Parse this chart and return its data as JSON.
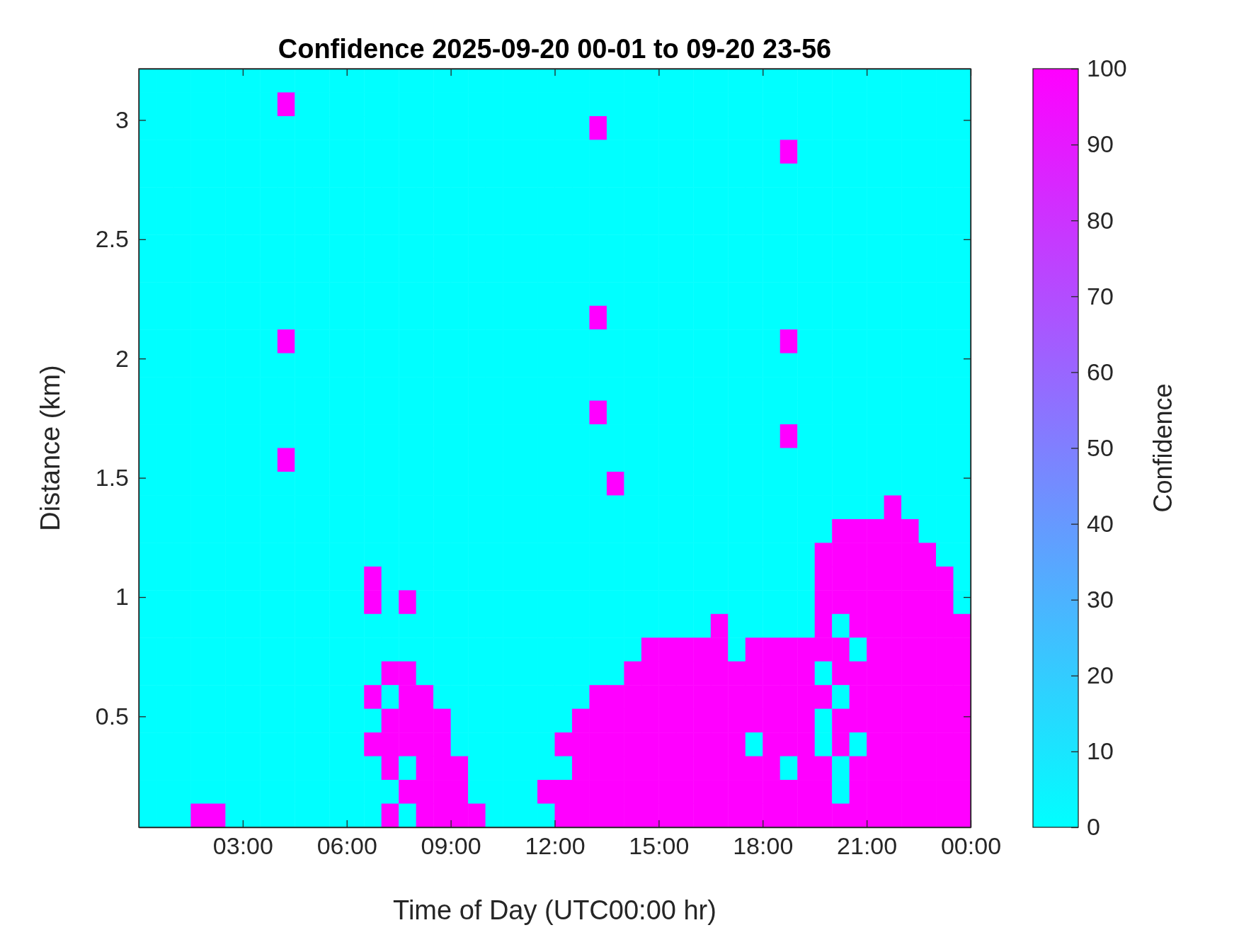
{
  "chart_data": {
    "type": "heatmap",
    "title": "Confidence 2025-09-20 00-01 to 09-20 23-56",
    "xlabel": "Time of Day (UTC00:00 hr)",
    "ylabel": "Distance (km)",
    "clabel": "Confidence",
    "xlim": [
      0,
      24
    ],
    "ylim": [
      0.035,
      3.215
    ],
    "xticks": [
      {
        "value": 3,
        "label": "03:00"
      },
      {
        "value": 6,
        "label": "06:00"
      },
      {
        "value": 9,
        "label": "09:00"
      },
      {
        "value": 12,
        "label": "12:00"
      },
      {
        "value": 15,
        "label": "15:00"
      },
      {
        "value": 18,
        "label": "18:00"
      },
      {
        "value": 21,
        "label": "21:00"
      },
      {
        "value": 24,
        "label": "00:00"
      }
    ],
    "yticks": [
      0.5,
      1,
      1.5,
      2,
      2.5,
      3
    ],
    "clim": [
      0,
      100
    ],
    "cticks": [
      0,
      10,
      20,
      30,
      40,
      50,
      60,
      70,
      80,
      90,
      100
    ],
    "cells": [
      [
        0,
        0,
        0,
        0,
        0,
        0,
        0,
        0,
        0,
        0,
        0,
        0,
        0,
        0,
        0,
        0,
        0,
        0,
        0,
        0,
        0,
        0,
        0,
        0,
        0,
        0,
        0,
        0,
        0,
        0,
        0,
        0,
        0,
        0,
        0,
        0,
        0,
        0,
        0,
        0,
        0,
        0,
        0,
        0,
        0,
        0,
        0,
        0
      ],
      [
        0,
        0,
        0,
        0,
        0,
        0,
        0,
        0,
        100,
        0,
        0,
        0,
        0,
        0,
        0,
        0,
        0,
        0,
        0,
        0,
        0,
        0,
        0,
        0,
        0,
        0,
        0,
        0,
        0,
        0,
        0,
        0,
        0,
        0,
        0,
        0,
        0,
        0,
        0,
        0,
        0,
        0,
        0,
        0,
        0,
        0,
        0,
        0
      ],
      [
        0,
        0,
        0,
        0,
        0,
        0,
        0,
        0,
        0,
        0,
        0,
        0,
        0,
        0,
        0,
        0,
        0,
        0,
        0,
        0,
        0,
        0,
        0,
        0,
        0,
        0,
        100,
        0,
        0,
        0,
        0,
        0,
        0,
        0,
        0,
        0,
        0,
        0,
        0,
        0,
        0,
        0,
        0,
        0,
        0,
        0,
        0,
        0
      ],
      [
        0,
        0,
        0,
        0,
        0,
        0,
        0,
        0,
        0,
        0,
        0,
        0,
        0,
        0,
        0,
        0,
        0,
        0,
        0,
        0,
        0,
        0,
        0,
        0,
        0,
        0,
        0,
        0,
        0,
        0,
        0,
        0,
        0,
        0,
        0,
        0,
        0,
        100,
        0,
        0,
        0,
        0,
        0,
        0,
        0,
        0,
        0,
        0
      ],
      [
        0,
        0,
        0,
        0,
        0,
        0,
        0,
        0,
        0,
        0,
        0,
        0,
        0,
        0,
        0,
        0,
        0,
        0,
        0,
        0,
        0,
        0,
        0,
        0,
        0,
        0,
        0,
        0,
        0,
        0,
        0,
        0,
        0,
        0,
        0,
        0,
        0,
        0,
        0,
        0,
        0,
        0,
        0,
        0,
        0,
        0,
        0,
        0
      ],
      [
        0,
        0,
        0,
        0,
        0,
        0,
        0,
        0,
        0,
        0,
        0,
        0,
        0,
        0,
        0,
        0,
        0,
        0,
        0,
        0,
        0,
        0,
        0,
        0,
        0,
        0,
        0,
        0,
        0,
        0,
        0,
        0,
        0,
        0,
        0,
        0,
        0,
        0,
        0,
        0,
        0,
        0,
        0,
        0,
        0,
        0,
        0,
        0
      ],
      [
        0,
        0,
        0,
        0,
        0,
        0,
        0,
        0,
        0,
        0,
        0,
        0,
        0,
        0,
        0,
        0,
        0,
        0,
        0,
        0,
        0,
        0,
        0,
        0,
        0,
        0,
        0,
        0,
        0,
        0,
        0,
        0,
        0,
        0,
        0,
        0,
        0,
        0,
        0,
        0,
        0,
        0,
        0,
        0,
        0,
        0,
        0,
        0
      ],
      [
        0,
        0,
        0,
        0,
        0,
        0,
        0,
        0,
        0,
        0,
        0,
        0,
        0,
        0,
        0,
        0,
        0,
        0,
        0,
        0,
        0,
        0,
        0,
        0,
        0,
        0,
        0,
        0,
        0,
        0,
        0,
        0,
        0,
        0,
        0,
        0,
        0,
        0,
        0,
        0,
        0,
        0,
        0,
        0,
        0,
        0,
        0,
        0
      ],
      [
        0,
        0,
        0,
        0,
        0,
        0,
        0,
        0,
        0,
        0,
        0,
        0,
        0,
        0,
        0,
        0,
        0,
        0,
        0,
        0,
        0,
        0,
        0,
        0,
        0,
        0,
        0,
        0,
        0,
        0,
        0,
        0,
        0,
        0,
        0,
        0,
        0,
        0,
        0,
        0,
        0,
        0,
        0,
        0,
        0,
        0,
        0,
        0
      ],
      [
        0,
        0,
        0,
        0,
        0,
        0,
        0,
        0,
        0,
        0,
        0,
        0,
        0,
        0,
        0,
        0,
        0,
        0,
        0,
        0,
        0,
        0,
        0,
        0,
        0,
        0,
        0,
        0,
        0,
        0,
        0,
        0,
        0,
        0,
        0,
        0,
        0,
        0,
        0,
        0,
        0,
        0,
        0,
        0,
        0,
        0,
        0,
        0
      ],
      [
        0,
        0,
        0,
        0,
        0,
        0,
        0,
        0,
        0,
        0,
        0,
        0,
        0,
        0,
        0,
        0,
        0,
        0,
        0,
        0,
        0,
        0,
        0,
        0,
        0,
        0,
        100,
        0,
        0,
        0,
        0,
        0,
        0,
        0,
        0,
        0,
        0,
        0,
        0,
        0,
        0,
        0,
        0,
        0,
        0,
        0,
        0,
        0
      ],
      [
        0,
        0,
        0,
        0,
        0,
        0,
        0,
        0,
        100,
        0,
        0,
        0,
        0,
        0,
        0,
        0,
        0,
        0,
        0,
        0,
        0,
        0,
        0,
        0,
        0,
        0,
        0,
        0,
        0,
        0,
        0,
        0,
        0,
        0,
        0,
        0,
        0,
        100,
        0,
        0,
        0,
        0,
        0,
        0,
        0,
        0,
        0,
        0
      ],
      [
        0,
        0,
        0,
        0,
        0,
        0,
        0,
        0,
        0,
        0,
        0,
        0,
        0,
        0,
        0,
        0,
        0,
        0,
        0,
        0,
        0,
        0,
        0,
        0,
        0,
        0,
        0,
        0,
        0,
        0,
        0,
        0,
        0,
        0,
        0,
        0,
        0,
        0,
        0,
        0,
        0,
        0,
        0,
        0,
        0,
        0,
        0,
        0
      ],
      [
        0,
        0,
        0,
        0,
        0,
        0,
        0,
        0,
        0,
        0,
        0,
        0,
        0,
        0,
        0,
        0,
        0,
        0,
        0,
        0,
        0,
        0,
        0,
        0,
        0,
        0,
        0,
        0,
        0,
        0,
        0,
        0,
        0,
        0,
        0,
        0,
        0,
        0,
        0,
        0,
        0,
        0,
        0,
        0,
        0,
        0,
        0,
        0
      ],
      [
        0,
        0,
        0,
        0,
        0,
        0,
        0,
        0,
        0,
        0,
        0,
        0,
        0,
        0,
        0,
        0,
        0,
        0,
        0,
        0,
        0,
        0,
        0,
        0,
        0,
        0,
        100,
        0,
        0,
        0,
        0,
        0,
        0,
        0,
        0,
        0,
        0,
        0,
        0,
        0,
        0,
        0,
        0,
        0,
        0,
        0,
        0,
        0
      ],
      [
        0,
        0,
        0,
        0,
        0,
        0,
        0,
        0,
        0,
        0,
        0,
        0,
        0,
        0,
        0,
        0,
        0,
        0,
        0,
        0,
        0,
        0,
        0,
        0,
        0,
        0,
        0,
        0,
        0,
        0,
        0,
        0,
        0,
        0,
        0,
        0,
        0,
        100,
        0,
        0,
        0,
        0,
        0,
        0,
        0,
        0,
        0,
        0
      ],
      [
        0,
        0,
        0,
        0,
        0,
        0,
        0,
        0,
        100,
        0,
        0,
        0,
        0,
        0,
        0,
        0,
        0,
        0,
        0,
        0,
        0,
        0,
        0,
        0,
        0,
        0,
        0,
        0,
        0,
        0,
        0,
        0,
        0,
        0,
        0,
        0,
        0,
        0,
        0,
        0,
        0,
        0,
        0,
        0,
        0,
        0,
        0,
        0
      ],
      [
        0,
        0,
        0,
        0,
        0,
        0,
        0,
        0,
        0,
        0,
        0,
        0,
        0,
        0,
        0,
        0,
        0,
        0,
        0,
        0,
        0,
        0,
        0,
        0,
        0,
        0,
        0,
        100,
        0,
        0,
        0,
        0,
        0,
        0,
        0,
        0,
        0,
        0,
        0,
        0,
        0,
        0,
        0,
        0,
        0,
        0,
        0,
        0
      ],
      [
        0,
        0,
        0,
        0,
        0,
        0,
        0,
        0,
        0,
        0,
        0,
        0,
        0,
        0,
        0,
        0,
        0,
        0,
        0,
        0,
        0,
        0,
        0,
        0,
        0,
        0,
        0,
        0,
        0,
        0,
        0,
        0,
        0,
        0,
        0,
        0,
        0,
        0,
        0,
        0,
        0,
        0,
        0,
        100,
        0,
        0,
        0,
        0
      ],
      [
        0,
        0,
        0,
        0,
        0,
        0,
        0,
        0,
        0,
        0,
        0,
        0,
        0,
        0,
        0,
        0,
        0,
        0,
        0,
        0,
        0,
        0,
        0,
        0,
        0,
        0,
        0,
        0,
        0,
        0,
        0,
        0,
        0,
        0,
        0,
        0,
        0,
        0,
        0,
        0,
        100,
        100,
        100,
        100,
        100,
        0,
        0,
        0
      ],
      [
        0,
        0,
        0,
        0,
        0,
        0,
        0,
        0,
        0,
        0,
        0,
        0,
        0,
        0,
        0,
        0,
        0,
        0,
        0,
        0,
        0,
        0,
        0,
        0,
        0,
        0,
        0,
        0,
        0,
        0,
        0,
        0,
        0,
        0,
        0,
        0,
        0,
        0,
        0,
        100,
        100,
        100,
        100,
        100,
        100,
        100,
        0,
        0
      ],
      [
        0,
        0,
        0,
        0,
        0,
        0,
        0,
        0,
        0,
        0,
        0,
        0,
        0,
        100,
        0,
        0,
        0,
        0,
        0,
        0,
        0,
        0,
        0,
        0,
        0,
        0,
        0,
        0,
        0,
        0,
        0,
        0,
        0,
        0,
        0,
        0,
        0,
        0,
        0,
        100,
        100,
        100,
        100,
        100,
        100,
        100,
        100,
        0
      ],
      [
        0,
        0,
        0,
        0,
        0,
        0,
        0,
        0,
        0,
        0,
        0,
        0,
        0,
        100,
        0,
        100,
        0,
        0,
        0,
        0,
        0,
        0,
        0,
        0,
        0,
        0,
        0,
        0,
        0,
        0,
        0,
        0,
        0,
        0,
        0,
        0,
        0,
        0,
        0,
        100,
        100,
        100,
        100,
        100,
        100,
        100,
        100,
        0
      ],
      [
        0,
        0,
        0,
        0,
        0,
        0,
        0,
        0,
        0,
        0,
        0,
        0,
        0,
        0,
        0,
        0,
        0,
        0,
        0,
        0,
        0,
        0,
        0,
        0,
        0,
        0,
        0,
        0,
        0,
        0,
        0,
        0,
        0,
        100,
        0,
        0,
        0,
        0,
        0,
        100,
        0,
        100,
        100,
        100,
        100,
        100,
        100,
        100
      ],
      [
        0,
        0,
        0,
        0,
        0,
        0,
        0,
        0,
        0,
        0,
        0,
        0,
        0,
        0,
        0,
        0,
        0,
        0,
        0,
        0,
        0,
        0,
        0,
        0,
        0,
        0,
        0,
        0,
        0,
        100,
        100,
        100,
        100,
        100,
        0,
        100,
        100,
        100,
        100,
        100,
        100,
        0,
        100,
        100,
        100,
        100,
        100,
        100
      ],
      [
        0,
        0,
        0,
        0,
        0,
        0,
        0,
        0,
        0,
        0,
        0,
        0,
        0,
        0,
        100,
        100,
        0,
        0,
        0,
        0,
        0,
        0,
        0,
        0,
        0,
        0,
        0,
        0,
        100,
        100,
        100,
        100,
        100,
        100,
        100,
        100,
        100,
        100,
        100,
        0,
        100,
        100,
        100,
        100,
        100,
        100,
        100,
        100
      ],
      [
        0,
        0,
        0,
        0,
        0,
        0,
        0,
        0,
        0,
        0,
        0,
        0,
        0,
        100,
        0,
        100,
        100,
        0,
        0,
        0,
        0,
        0,
        0,
        0,
        0,
        0,
        100,
        100,
        100,
        100,
        100,
        100,
        100,
        100,
        100,
        100,
        100,
        100,
        100,
        100,
        0,
        100,
        100,
        100,
        100,
        100,
        100,
        100
      ],
      [
        0,
        0,
        0,
        0,
        0,
        0,
        0,
        0,
        0,
        0,
        0,
        0,
        0,
        0,
        100,
        100,
        100,
        100,
        0,
        0,
        0,
        0,
        0,
        0,
        0,
        100,
        100,
        100,
        100,
        100,
        100,
        100,
        100,
        100,
        100,
        100,
        100,
        100,
        100,
        0,
        100,
        100,
        100,
        100,
        100,
        100,
        100,
        100
      ],
      [
        0,
        0,
        0,
        0,
        0,
        0,
        0,
        0,
        0,
        0,
        0,
        0,
        0,
        100,
        100,
        100,
        100,
        100,
        0,
        0,
        0,
        0,
        0,
        0,
        100,
        100,
        100,
        100,
        100,
        100,
        100,
        100,
        100,
        100,
        100,
        0,
        100,
        100,
        100,
        0,
        100,
        0,
        100,
        100,
        100,
        100,
        100,
        100
      ],
      [
        0,
        0,
        0,
        0,
        0,
        0,
        0,
        0,
        0,
        0,
        0,
        0,
        0,
        0,
        100,
        0,
        100,
        100,
        100,
        0,
        0,
        0,
        0,
        0,
        0,
        100,
        100,
        100,
        100,
        100,
        100,
        100,
        100,
        100,
        100,
        100,
        100,
        0,
        100,
        100,
        0,
        100,
        100,
        100,
        100,
        100,
        100,
        100
      ],
      [
        0,
        0,
        0,
        0,
        0,
        0,
        0,
        0,
        0,
        0,
        0,
        0,
        0,
        0,
        0,
        100,
        100,
        100,
        100,
        0,
        0,
        0,
        0,
        100,
        100,
        100,
        100,
        100,
        100,
        100,
        100,
        100,
        100,
        100,
        100,
        100,
        100,
        100,
        100,
        100,
        0,
        100,
        100,
        100,
        100,
        100,
        100,
        100
      ],
      [
        0,
        0,
        0,
        100,
        100,
        0,
        0,
        0,
        0,
        0,
        0,
        0,
        0,
        0,
        100,
        0,
        100,
        100,
        100,
        100,
        0,
        0,
        0,
        0,
        100,
        100,
        100,
        100,
        100,
        100,
        100,
        100,
        100,
        100,
        100,
        100,
        100,
        100,
        100,
        100,
        100,
        100,
        100,
        100,
        100,
        100,
        100,
        100
      ]
    ]
  }
}
